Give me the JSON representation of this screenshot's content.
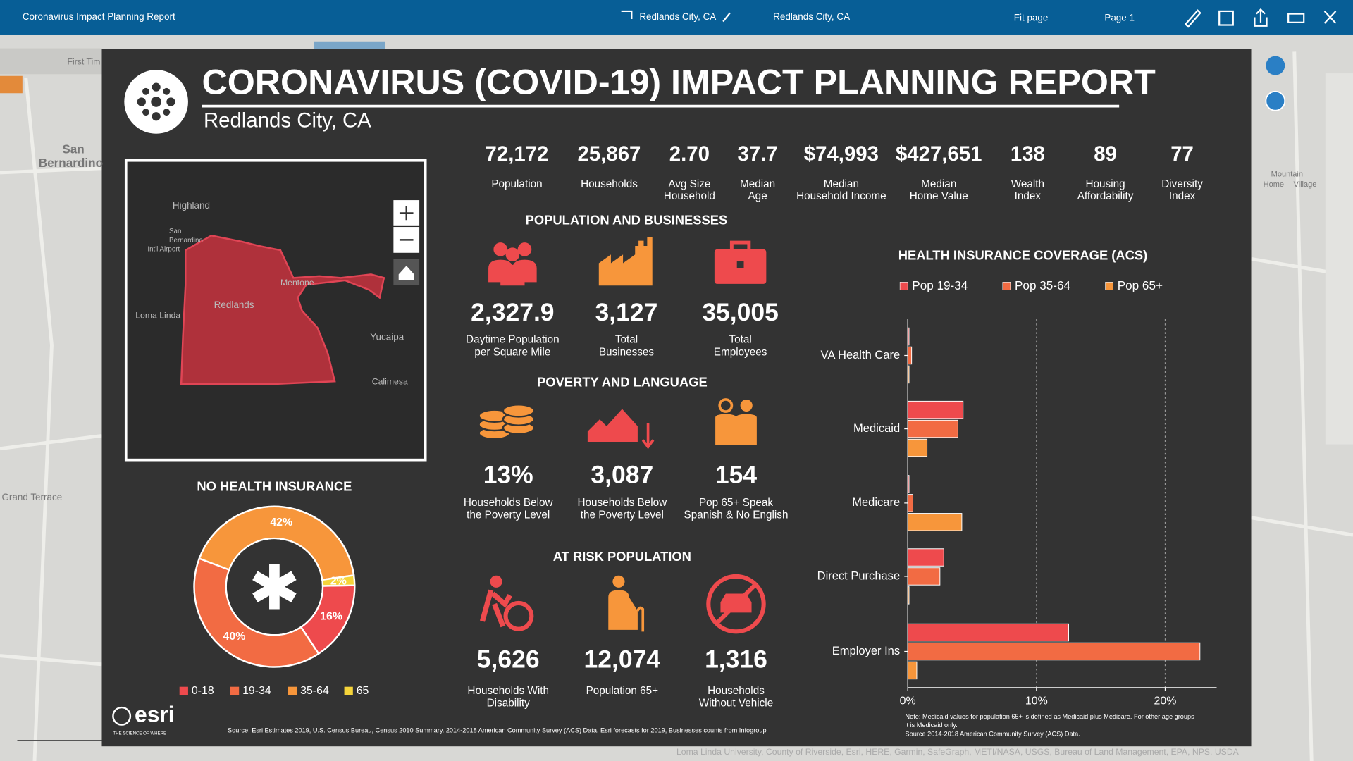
{
  "toolbar": {
    "title": "Coronavirus Impact Planning Report",
    "location": "Redlands City, CA",
    "location_select": "Redlands City, CA",
    "zoom": "Fit page",
    "page": "Page 1"
  },
  "background_map": {
    "labels": [
      "San",
      "Bernardino",
      "First Tim",
      "Grand Terrace",
      "Mountain",
      "Home",
      "Village"
    ],
    "attribution": "Loma Linda University, County of Riverside, Esri, HERE, Garmin, SafeGraph, METI/NASA, USGS, Bureau of Land Management, EPA, NPS, USDA"
  },
  "report": {
    "title": "CORONAVIRUS (COVID-19) IMPACT PLANNING REPORT",
    "subtitle": "Redlands City, CA",
    "key_stats": [
      {
        "value": "72,172",
        "label": [
          "Population"
        ]
      },
      {
        "value": "25,867",
        "label": [
          "Households"
        ]
      },
      {
        "value": "2.70",
        "label": [
          "Avg Size",
          "Household"
        ]
      },
      {
        "value": "37.7",
        "label": [
          "Median",
          "Age"
        ]
      },
      {
        "value": "$74,993",
        "label": [
          "Median",
          "Household Income"
        ]
      },
      {
        "value": "$427,651",
        "label": [
          "Median",
          "Home Value"
        ]
      },
      {
        "value": "138",
        "label": [
          "Wealth",
          "Index"
        ]
      },
      {
        "value": "89",
        "label": [
          "Housing",
          "Affordability"
        ]
      },
      {
        "value": "77",
        "label": [
          "Diversity",
          "Index"
        ]
      }
    ],
    "map_labels": [
      "Highland",
      "San",
      "Bernardino",
      "Int'l Airport",
      "Mentone",
      "Redlands",
      "Loma Linda",
      "Yucaipa",
      "Calimesa"
    ],
    "sections": [
      {
        "title": "POPULATION AND BUSINESSES",
        "items": [
          {
            "value": "2,327.9",
            "label": [
              "Daytime Population",
              "per Square Mile"
            ]
          },
          {
            "value": "3,127",
            "label": [
              "Total",
              "Businesses"
            ]
          },
          {
            "value": "35,005",
            "label": [
              "Total",
              "Employees"
            ]
          }
        ]
      },
      {
        "title": "POVERTY AND LANGUAGE",
        "items": [
          {
            "value": "13%",
            "label": [
              "Households Below",
              "the Poverty Level"
            ]
          },
          {
            "value": "3,087",
            "label": [
              "Households Below",
              "the Poverty Level"
            ]
          },
          {
            "value": "154",
            "label": [
              "Pop 65+ Speak",
              "Spanish & No English"
            ]
          }
        ]
      },
      {
        "title": "AT RISK POPULATION",
        "items": [
          {
            "value": "5,626",
            "label": [
              "Households With",
              "Disability"
            ]
          },
          {
            "value": "12,074",
            "label": [
              "Population 65+"
            ]
          },
          {
            "value": "1,316",
            "label": [
              "Households",
              "Without Vehicle"
            ]
          }
        ]
      }
    ],
    "source": "Source: Esri Estimates 2019, U.S. Census Bureau, Census 2010 Summary. 2014-2018 American Community Survey (ACS) Data. Esri forecasts for 2019, Businesses counts from Infogroup",
    "logo": "esri",
    "tagline": "THE SCIENCE OF WHERE"
  },
  "chart_data": [
    {
      "type": "donut",
      "title": "NO HEALTH INSURANCE",
      "categories": [
        "0-18",
        "19-34",
        "35-64",
        "65"
      ],
      "values": [
        16,
        40,
        42,
        2
      ],
      "value_labels": [
        "16%",
        "40%",
        "42%",
        "2%"
      ],
      "colors": [
        "#ee4a4d",
        "#f26b43",
        "#f7963b",
        "#f5d43a"
      ]
    },
    {
      "type": "hbar",
      "title": "HEALTH INSURANCE COVERAGE (ACS)",
      "categories": [
        "VA Health Care",
        "Medicaid",
        "Medicare",
        "Direct Purchase",
        "Employer Ins"
      ],
      "series": [
        {
          "name": "Pop 19-34",
          "color": "#ee4a4d",
          "values": [
            0.1,
            4.3,
            0.1,
            2.8,
            12.5
          ]
        },
        {
          "name": "Pop 35-64",
          "color": "#f26b43",
          "values": [
            0.3,
            3.9,
            0.4,
            2.5,
            22.7
          ]
        },
        {
          "name": "Pop 65+",
          "color": "#f7963b",
          "values": [
            0.1,
            1.5,
            4.2,
            0.1,
            0.7
          ]
        }
      ],
      "xlim": [
        0,
        24
      ],
      "xticks": [
        {
          "value": 0,
          "label": "0%"
        },
        {
          "value": 10,
          "label": "10%"
        },
        {
          "value": 20,
          "label": "20%"
        }
      ],
      "grid": true,
      "notes": [
        "Note: Medicaid values for population 65+ is defined as Medicaid plus Medicare. For other age groups",
        "it is Medicaid only.",
        "Source 2014-2018 American Community Survey (ACS) Data."
      ]
    }
  ]
}
